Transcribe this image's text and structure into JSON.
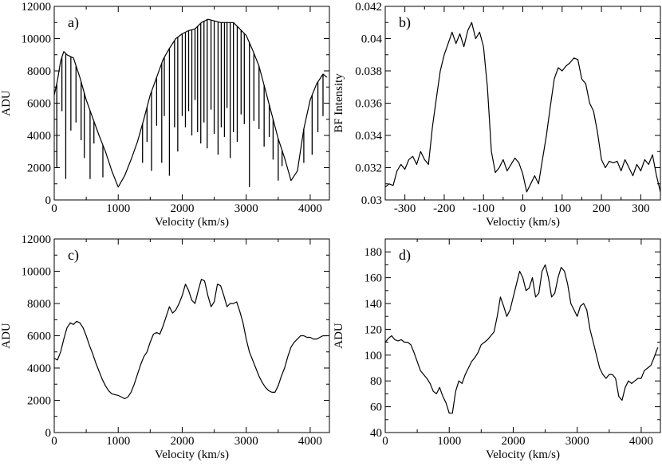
{
  "figure": {
    "background": "#ffffff",
    "line_color": "#000000"
  },
  "chart_data": [
    {
      "panel": "a)",
      "type": "line",
      "xlabel": "Velocity (km/s)",
      "ylabel": "ADU",
      "xlim": [
        0,
        4300
      ],
      "ylim": [
        0,
        12000
      ],
      "xticks": [
        0,
        1000,
        2000,
        3000,
        4000
      ],
      "yticks": [
        0,
        2000,
        4000,
        6000,
        8000,
        10000,
        12000
      ],
      "grid": false,
      "x": [
        0,
        50,
        100,
        150,
        200,
        300,
        400,
        500,
        600,
        700,
        800,
        900,
        1000,
        1100,
        1200,
        1300,
        1400,
        1500,
        1600,
        1700,
        1800,
        1900,
        2000,
        2100,
        2200,
        2300,
        2400,
        2500,
        2600,
        2700,
        2800,
        2900,
        3000,
        3100,
        3200,
        3300,
        3400,
        3500,
        3600,
        3700,
        3800,
        3900,
        4000,
        4100,
        4200,
        4260
      ],
      "y": [
        6500,
        7400,
        8600,
        9200,
        9000,
        8800,
        7600,
        6200,
        5100,
        4000,
        3000,
        1800,
        800,
        1500,
        2500,
        3600,
        5000,
        6500,
        7600,
        8700,
        9400,
        10000,
        10300,
        10500,
        10600,
        11000,
        11200,
        11100,
        11000,
        11000,
        11000,
        10600,
        10200,
        9300,
        8300,
        6800,
        5300,
        3800,
        2600,
        1200,
        1800,
        4400,
        6200,
        7200,
        7800,
        7600
      ],
      "absorption_lines": [
        {
          "x": 40,
          "y": 2000
        },
        {
          "x": 120,
          "y": 5500
        },
        {
          "x": 180,
          "y": 1300
        },
        {
          "x": 260,
          "y": 4300
        },
        {
          "x": 340,
          "y": 4800
        },
        {
          "x": 420,
          "y": 3700
        },
        {
          "x": 470,
          "y": 2600
        },
        {
          "x": 560,
          "y": 1300
        },
        {
          "x": 620,
          "y": 3500
        },
        {
          "x": 760,
          "y": 1400
        },
        {
          "x": 1380,
          "y": 2300
        },
        {
          "x": 1450,
          "y": 3600
        },
        {
          "x": 1520,
          "y": 1800
        },
        {
          "x": 1600,
          "y": 4600
        },
        {
          "x": 1680,
          "y": 2300
        },
        {
          "x": 1720,
          "y": 5200
        },
        {
          "x": 1800,
          "y": 1500
        },
        {
          "x": 1880,
          "y": 4500
        },
        {
          "x": 1930,
          "y": 3000
        },
        {
          "x": 2000,
          "y": 5200
        },
        {
          "x": 2050,
          "y": 4500
        },
        {
          "x": 2100,
          "y": 5500
        },
        {
          "x": 2150,
          "y": 4000
        },
        {
          "x": 2200,
          "y": 6200
        },
        {
          "x": 2240,
          "y": 4200
        },
        {
          "x": 2290,
          "y": 3500
        },
        {
          "x": 2340,
          "y": 4800
        },
        {
          "x": 2390,
          "y": 3200
        },
        {
          "x": 2450,
          "y": 5600
        },
        {
          "x": 2500,
          "y": 4100
        },
        {
          "x": 2560,
          "y": 2800
        },
        {
          "x": 2610,
          "y": 4500
        },
        {
          "x": 2660,
          "y": 3900
        },
        {
          "x": 2700,
          "y": 5700
        },
        {
          "x": 2750,
          "y": 2600
        },
        {
          "x": 2800,
          "y": 4200
        },
        {
          "x": 2860,
          "y": 3600
        },
        {
          "x": 2920,
          "y": 5300
        },
        {
          "x": 2970,
          "y": 4700
        },
        {
          "x": 3050,
          "y": 800
        },
        {
          "x": 3120,
          "y": 4900
        },
        {
          "x": 3200,
          "y": 4400
        },
        {
          "x": 3280,
          "y": 3300
        },
        {
          "x": 3360,
          "y": 3900
        },
        {
          "x": 3420,
          "y": 2500
        },
        {
          "x": 3500,
          "y": 1200
        },
        {
          "x": 3560,
          "y": 2100
        },
        {
          "x": 3900,
          "y": 2300
        },
        {
          "x": 4030,
          "y": 2800
        },
        {
          "x": 4120,
          "y": 4200
        },
        {
          "x": 4200,
          "y": 5200
        }
      ]
    },
    {
      "panel": "b)",
      "type": "line",
      "xlabel": "Velоctiy (km/s)",
      "ylabel": "BF Intensity",
      "xlim": [
        -350,
        350
      ],
      "ylim": [
        0.03,
        0.042
      ],
      "xticks": [
        -300,
        -200,
        -100,
        0,
        100,
        200,
        300
      ],
      "xtick_labels": [
        "-300",
        "-200",
        "-100",
        "0",
        "100",
        "200",
        "300"
      ],
      "yticks": [
        0.03,
        0.032,
        0.034,
        0.036,
        0.038,
        0.04,
        0.042
      ],
      "ytick_labels": [
        "0.03",
        "0.032",
        "0.034",
        "0.036",
        "0.038",
        "0.04",
        "0.042"
      ],
      "grid": false,
      "x": [
        -350,
        -340,
        -330,
        -320,
        -310,
        -300,
        -290,
        -280,
        -270,
        -260,
        -250,
        -240,
        -230,
        -220,
        -210,
        -200,
        -190,
        -180,
        -170,
        -160,
        -150,
        -140,
        -130,
        -120,
        -110,
        -100,
        -90,
        -80,
        -70,
        -60,
        -50,
        -40,
        -30,
        -20,
        -10,
        0,
        10,
        20,
        30,
        40,
        50,
        60,
        70,
        80,
        90,
        100,
        110,
        120,
        130,
        140,
        150,
        160,
        170,
        180,
        190,
        200,
        210,
        220,
        230,
        240,
        250,
        260,
        270,
        280,
        290,
        300,
        310,
        320,
        330,
        340,
        350
      ],
      "y": [
        0.0308,
        0.031,
        0.0309,
        0.0318,
        0.0322,
        0.0319,
        0.0325,
        0.0327,
        0.0322,
        0.033,
        0.0325,
        0.0322,
        0.0345,
        0.0363,
        0.038,
        0.039,
        0.0397,
        0.0404,
        0.0397,
        0.0403,
        0.0395,
        0.0405,
        0.041,
        0.04,
        0.0404,
        0.0395,
        0.037,
        0.033,
        0.0317,
        0.032,
        0.0325,
        0.0318,
        0.0322,
        0.0326,
        0.0323,
        0.0316,
        0.0305,
        0.031,
        0.0315,
        0.031,
        0.0325,
        0.034,
        0.0358,
        0.0375,
        0.0382,
        0.038,
        0.0383,
        0.0385,
        0.0388,
        0.0387,
        0.0375,
        0.0372,
        0.036,
        0.0355,
        0.0342,
        0.0325,
        0.032,
        0.0324,
        0.0323,
        0.0324,
        0.0318,
        0.0325,
        0.032,
        0.0315,
        0.0322,
        0.0318,
        0.0325,
        0.0322,
        0.0328,
        0.0315,
        0.0305
      ]
    },
    {
      "panel": "c)",
      "type": "line",
      "xlabel": "Velocity (km/s)",
      "ylabel": "ADU",
      "xlim": [
        0,
        4300
      ],
      "ylim": [
        0,
        12000
      ],
      "xticks": [
        0,
        1000,
        2000,
        3000,
        4000
      ],
      "yticks": [
        0,
        2000,
        4000,
        6000,
        8000,
        10000,
        12000
      ],
      "grid": false,
      "x": [
        0,
        50,
        100,
        150,
        200,
        250,
        300,
        350,
        400,
        450,
        500,
        550,
        600,
        650,
        700,
        750,
        800,
        850,
        900,
        950,
        1000,
        1050,
        1100,
        1150,
        1200,
        1250,
        1300,
        1350,
        1400,
        1450,
        1500,
        1550,
        1600,
        1650,
        1700,
        1750,
        1800,
        1850,
        1900,
        1950,
        2000,
        2050,
        2100,
        2150,
        2200,
        2250,
        2300,
        2350,
        2400,
        2450,
        2500,
        2550,
        2600,
        2650,
        2700,
        2750,
        2800,
        2850,
        2900,
        2950,
        3000,
        3050,
        3100,
        3150,
        3200,
        3250,
        3300,
        3350,
        3400,
        3450,
        3500,
        3550,
        3600,
        3650,
        3700,
        3750,
        3800,
        3850,
        3900,
        3950,
        4000,
        4050,
        4100,
        4150,
        4200,
        4260
      ],
      "y": [
        4600,
        4500,
        5000,
        5800,
        6500,
        6800,
        6700,
        6900,
        6800,
        6500,
        6000,
        5400,
        4900,
        4300,
        3800,
        3300,
        2900,
        2600,
        2400,
        2350,
        2300,
        2200,
        2100,
        2200,
        2500,
        3000,
        3600,
        4200,
        4700,
        5000,
        5600,
        6100,
        6200,
        6100,
        6600,
        7200,
        7800,
        7400,
        7600,
        8000,
        8500,
        9200,
        8800,
        8200,
        8000,
        8800,
        9500,
        9400,
        8500,
        7800,
        8100,
        9200,
        9100,
        8500,
        7800,
        8000,
        8000,
        8100,
        7500,
        6800,
        5800,
        5000,
        4500,
        4000,
        3500,
        3100,
        2800,
        2600,
        2500,
        2500,
        2900,
        3500,
        4000,
        4700,
        5300,
        5600,
        5800,
        6000,
        6000,
        5900,
        5900,
        5800,
        5800,
        5900,
        6000,
        6000
      ]
    },
    {
      "panel": "d)",
      "type": "line",
      "xlabel": "Velocity (km/s)",
      "ylabel": "ADU",
      "xlim": [
        0,
        4300
      ],
      "ylim": [
        40,
        190
      ],
      "xticks": [
        0,
        1000,
        2000,
        3000,
        4000
      ],
      "yticks": [
        40,
        60,
        80,
        100,
        120,
        140,
        160,
        180
      ],
      "grid": false,
      "x": [
        0,
        50,
        100,
        150,
        200,
        250,
        300,
        350,
        400,
        450,
        500,
        550,
        600,
        650,
        700,
        750,
        800,
        850,
        900,
        950,
        1000,
        1050,
        1100,
        1150,
        1200,
        1250,
        1300,
        1350,
        1400,
        1450,
        1500,
        1550,
        1600,
        1650,
        1700,
        1750,
        1800,
        1850,
        1900,
        1950,
        2000,
        2050,
        2100,
        2150,
        2200,
        2250,
        2300,
        2350,
        2400,
        2450,
        2500,
        2550,
        2600,
        2650,
        2700,
        2750,
        2800,
        2850,
        2900,
        2950,
        3000,
        3050,
        3100,
        3150,
        3200,
        3250,
        3300,
        3350,
        3400,
        3450,
        3500,
        3550,
        3600,
        3650,
        3700,
        3750,
        3800,
        3850,
        3900,
        3950,
        4000,
        4050,
        4100,
        4150,
        4200,
        4260
      ],
      "y": [
        110,
        113,
        115,
        112,
        111,
        112,
        110,
        110,
        108,
        102,
        95,
        88,
        85,
        82,
        78,
        72,
        70,
        75,
        68,
        63,
        55,
        55,
        72,
        80,
        78,
        85,
        90,
        95,
        98,
        102,
        108,
        110,
        112,
        115,
        118,
        130,
        145,
        138,
        130,
        135,
        145,
        155,
        165,
        160,
        150,
        152,
        160,
        145,
        148,
        165,
        170,
        160,
        145,
        148,
        160,
        168,
        165,
        155,
        140,
        135,
        130,
        138,
        140,
        135,
        120,
        110,
        100,
        90,
        85,
        82,
        85,
        85,
        82,
        68,
        65,
        75,
        80,
        78,
        80,
        82,
        82,
        88,
        90,
        92,
        98,
        106
      ]
    }
  ]
}
